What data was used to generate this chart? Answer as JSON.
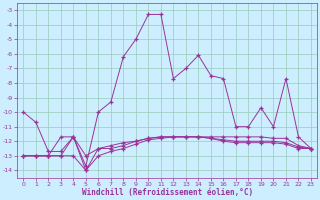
{
  "xlabel": "Windchill (Refroidissement éolien,°C)",
  "x": [
    0,
    1,
    2,
    3,
    4,
    5,
    6,
    7,
    8,
    9,
    10,
    11,
    12,
    13,
    14,
    15,
    16,
    17,
    18,
    19,
    20,
    21,
    22,
    23
  ],
  "line_main": [
    -10,
    -10.7,
    -12.7,
    -12.7,
    -11.7,
    -13.7,
    -10.0,
    -9.3,
    -6.2,
    -5.0,
    -3.3,
    -3.3,
    -7.7,
    -7.0,
    -6.1,
    -7.5,
    -7.7,
    -11.0,
    -11.0,
    -9.7,
    -11.0,
    -7.7,
    -11.7,
    -12.5
  ],
  "line_a": [
    -13,
    -13,
    -13,
    -13,
    -13,
    -14.0,
    -13.0,
    -12.7,
    -12.5,
    -12.2,
    -11.9,
    -11.8,
    -11.7,
    -11.7,
    -11.7,
    -11.7,
    -11.7,
    -11.7,
    -11.7,
    -11.7,
    -11.8,
    -11.8,
    -12.3,
    -12.5
  ],
  "line_b": [
    -13,
    -13,
    -13,
    -11.7,
    -11.7,
    -13.0,
    -12.5,
    -12.3,
    -12.1,
    -12.0,
    -11.8,
    -11.7,
    -11.7,
    -11.7,
    -11.7,
    -11.8,
    -11.9,
    -12.0,
    -12.0,
    -12.0,
    -12.0,
    -12.1,
    -12.4,
    -12.5
  ],
  "line_c": [
    -13,
    -13,
    -13,
    -13,
    -11.7,
    -14.0,
    -12.5,
    -12.5,
    -12.3,
    -12.0,
    -11.8,
    -11.7,
    -11.7,
    -11.7,
    -11.7,
    -11.8,
    -12.0,
    -12.1,
    -12.1,
    -12.1,
    -12.1,
    -12.2,
    -12.5,
    -12.5
  ],
  "line_color": "#993399",
  "bg_color": "#cceeff",
  "grid_color": "#99ccbb",
  "ylim": [
    -14.5,
    -2.5
  ],
  "xlim": [
    -0.5,
    23.5
  ],
  "yticks": [
    -14,
    -13,
    -12,
    -11,
    -10,
    -9,
    -8,
    -7,
    -6,
    -5,
    -4,
    -3
  ],
  "xticks": [
    0,
    1,
    2,
    3,
    4,
    5,
    6,
    7,
    8,
    9,
    10,
    11,
    12,
    13,
    14,
    15,
    16,
    17,
    18,
    19,
    20,
    21,
    22,
    23
  ],
  "tick_fontsize": 4.5,
  "xlabel_fontsize": 5.5,
  "xlabel_fontweight": "bold"
}
